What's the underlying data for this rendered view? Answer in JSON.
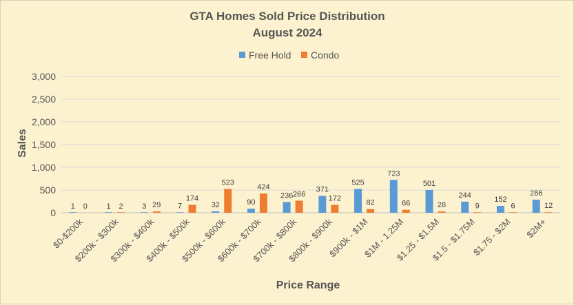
{
  "chart_data": {
    "type": "bar",
    "title": "GTA Homes Sold Price Distribution",
    "subtitle": "August 2024",
    "xlabel": "Price Range",
    "ylabel": "Sales",
    "ylim": [
      0,
      3000
    ],
    "yticks": [
      0,
      500,
      1000,
      1500,
      2000,
      2500,
      3000
    ],
    "ytick_labels": [
      "0",
      "500",
      "1,000",
      "1,500",
      "2,000",
      "2,500",
      "3,000"
    ],
    "grid": true,
    "legend_position": "top",
    "categories": [
      "$0-$200k",
      "$200k - $300k",
      "$300k - $400k",
      "$400k - $500k",
      "$500k - $600k",
      "$600k - $700k",
      "$700k - $800k",
      "$800k - $900k",
      "$900k - $1M",
      "$1M - 1.25M",
      "$1.25 - $1.5M",
      "$1.5 - $1.75M",
      "$1.75 - $2M",
      "$2M+"
    ],
    "series": [
      {
        "name": "Free Hold",
        "color": "#5b9bd5",
        "values": [
          1,
          1,
          3,
          7,
          32,
          90,
          236,
          371,
          525,
          723,
          501,
          244,
          152,
          286
        ]
      },
      {
        "name": "Condo",
        "color": "#ed7d31",
        "values": [
          0,
          2,
          29,
          174,
          523,
          424,
          266,
          172,
          82,
          66,
          28,
          9,
          6,
          12
        ]
      }
    ]
  }
}
